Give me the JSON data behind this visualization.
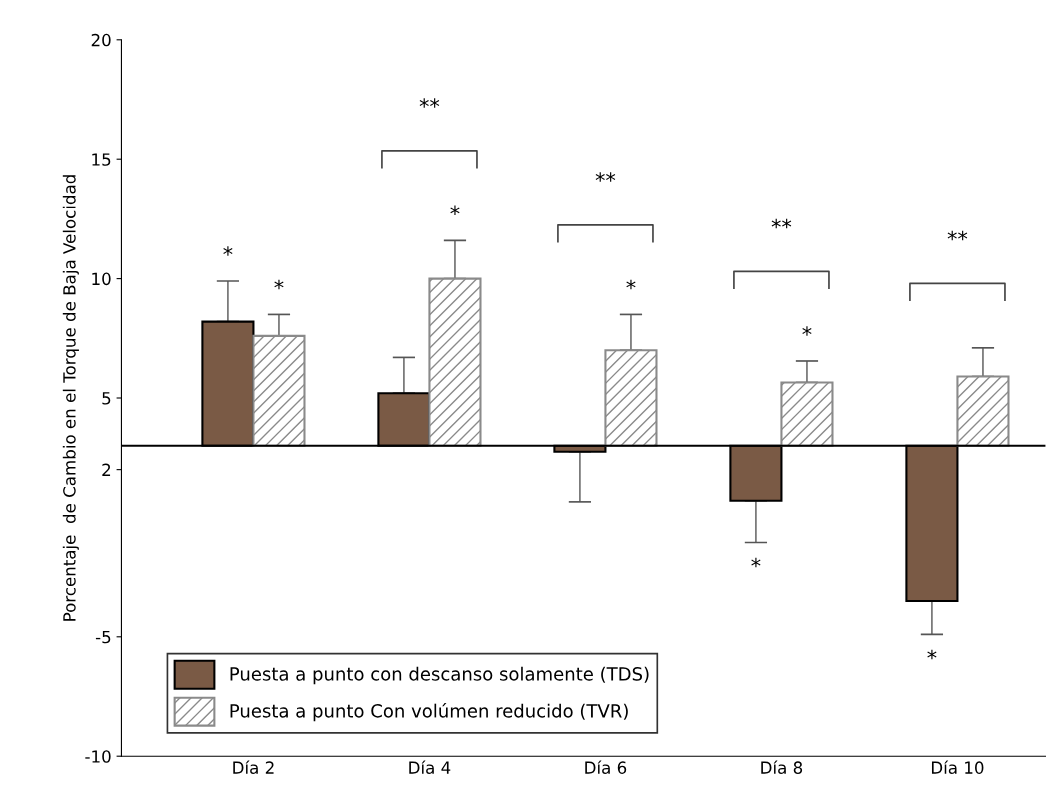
{
  "chart_data": {
    "type": "bar",
    "ylabel": "Porcentaje  de Cambio en el Torque de Baja Velocidad",
    "categories": [
      "Día 2",
      "Día 4",
      "Día 6",
      "Día 8",
      "Día 10"
    ],
    "series": [
      {
        "name": "Puesta a punto con descanso solamente (TDS)",
        "color": "#7a5a45",
        "base": [
          3,
          3,
          3,
          3,
          3
        ],
        "values": [
          5.2,
          2.2,
          -0.25,
          -2.3,
          -6.5
        ],
        "errors": [
          [
            8.2,
            9.9
          ],
          [
            5.2,
            6.7
          ],
          [
            0.65,
            2.75
          ],
          [
            -1.05,
            0.7
          ],
          [
            -4.9,
            -3.5
          ]
        ],
        "value_labels": [
          "*",
          null,
          null,
          "*",
          "*"
        ]
      },
      {
        "name": "Puesta a punto Con volúmen reducido (TVR)",
        "color": "#8a8a8a",
        "base": [
          3,
          3,
          3,
          3,
          3
        ],
        "values": [
          4.6,
          7.0,
          4.0,
          2.65,
          2.9
        ],
        "errors": [
          [
            7.6,
            8.5
          ],
          [
            10.0,
            11.6
          ],
          [
            7.0,
            8.5
          ],
          [
            5.65,
            6.55
          ],
          [
            5.9,
            7.1
          ]
        ],
        "value_labels": [
          "*",
          "*",
          "*",
          "*",
          null
        ]
      }
    ],
    "ylim": [
      -10,
      20
    ],
    "yticks": [
      -10,
      -5,
      2,
      5,
      10,
      15,
      20
    ],
    "ref_lines": [
      {
        "axis": "y",
        "value": 3
      }
    ],
    "annotations": [
      "**",
      "**",
      "**",
      "**"
    ],
    "legend": "bottom left",
    "grid": false
  }
}
